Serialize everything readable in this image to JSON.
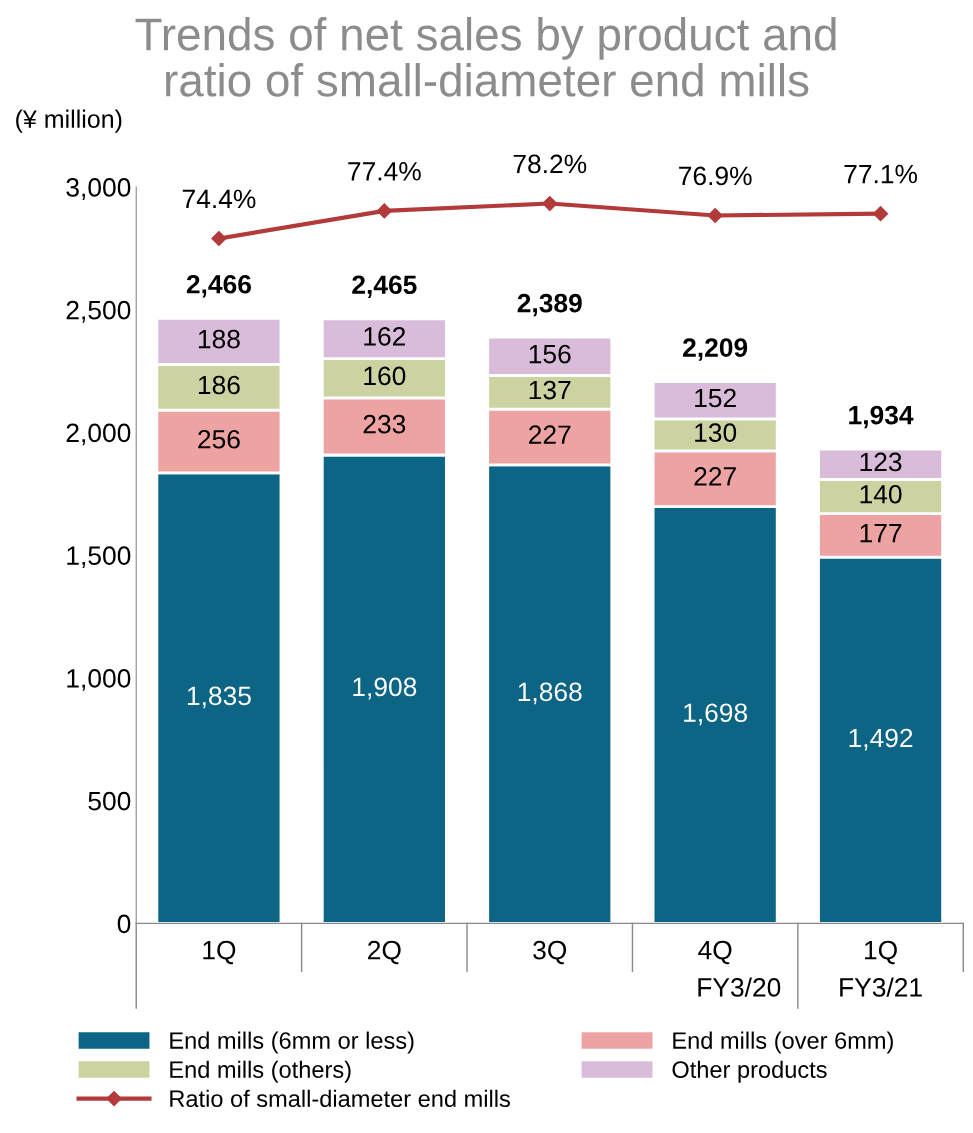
{
  "chart_data": {
    "type": "bar",
    "stacked": true,
    "title": "Trends of net sales by product and\nratio of small-diameter end mills",
    "ylabel": "(¥ million)",
    "categories": [
      "1Q",
      "2Q",
      "3Q",
      "4Q",
      "1Q"
    ],
    "annotations": [
      "FY3/20",
      "FY3/21"
    ],
    "series": [
      {
        "name": "End mills (6mm or less)",
        "color": "#0d6585",
        "values": [
          1835,
          1908,
          1868,
          1698,
          1492
        ],
        "value_labels": [
          "1,835",
          "1,908",
          "1,868",
          "1,698",
          "1,492"
        ]
      },
      {
        "name": "End mills (over 6mm)",
        "color": "#eea3a3",
        "values": [
          256,
          233,
          227,
          227,
          177
        ]
      },
      {
        "name": "End mills (others)",
        "color": "#ccd3a0",
        "values": [
          186,
          160,
          137,
          130,
          140
        ]
      },
      {
        "name": "Other products",
        "color": "#d9bcd9",
        "values": [
          188,
          162,
          156,
          152,
          123
        ]
      },
      {
        "name": "Ratio of small-diameter end mills",
        "type": "line",
        "axis": "y2",
        "color": "#b33a3a",
        "marker": "diamond",
        "values": [
          74.4,
          77.4,
          78.2,
          76.9,
          77.1
        ],
        "value_labels": [
          "74.4%",
          "77.4%",
          "78.2%",
          "76.9%",
          "77.1%"
        ]
      }
    ],
    "totals": [
      "2,466",
      "2,465",
      "2,389",
      "2,209",
      "1,934"
    ],
    "data_labels": true,
    "ylim": [
      0,
      3000
    ],
    "yticks": [
      0,
      {
        "value": 500,
        "label": "500"
      },
      {
        "value": 1000,
        "label": "1,000"
      },
      {
        "value": 1500,
        "label": "1,500"
      },
      {
        "value": 2000,
        "label": "2,000"
      },
      {
        "value": 2500,
        "label": "2,500"
      },
      {
        "value": 3000,
        "label": "3,000"
      }
    ],
    "y2lim": [
      0,
      80
    ],
    "grid": false,
    "legend": "bottom"
  }
}
